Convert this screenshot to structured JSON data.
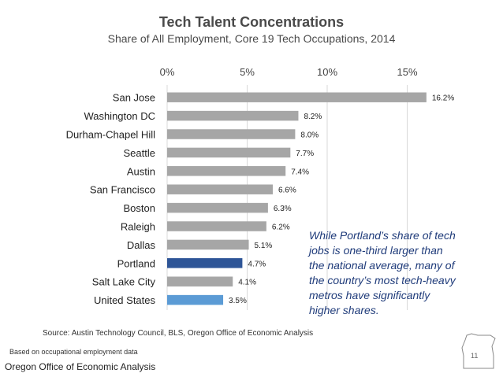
{
  "chart_data": {
    "type": "bar",
    "orientation": "horizontal",
    "title": "Tech Talent Concentrations",
    "subtitle": "Share of All Employment, Core 19 Tech Occupations, 2014",
    "categories": [
      "San Jose",
      "Washington DC",
      "Durham-Chapel Hill",
      "Seattle",
      "Austin",
      "San Francisco",
      "Boston",
      "Raleigh",
      "Dallas",
      "Portland",
      "Salt Lake City",
      "United States"
    ],
    "values": [
      16.2,
      8.2,
      8.0,
      7.7,
      7.4,
      6.6,
      6.3,
      6.2,
      5.1,
      4.7,
      4.1,
      3.5
    ],
    "value_labels": [
      "16.2%",
      "8.2%",
      "8.0%",
      "7.7%",
      "7.4%",
      "6.6%",
      "6.3%",
      "6.2%",
      "5.1%",
      "4.7%",
      "4.1%",
      "3.5%"
    ],
    "xlim": [
      0,
      17
    ],
    "xticks": [
      0,
      5,
      10,
      15
    ],
    "xtick_labels": [
      "0%",
      "5%",
      "10%",
      "15%"
    ],
    "xaxis_position": "top",
    "grid": true,
    "colors": {
      "default": "#a6a6a6",
      "highlight_portland": "#2e5597",
      "highlight_us": "#5b9bd5"
    },
    "bar_colors": [
      "#a6a6a6",
      "#a6a6a6",
      "#a6a6a6",
      "#a6a6a6",
      "#a6a6a6",
      "#a6a6a6",
      "#a6a6a6",
      "#a6a6a6",
      "#a6a6a6",
      "#2e5597",
      "#a6a6a6",
      "#5b9bd5"
    ]
  },
  "annotation": "While Portland’s share of tech jobs is one-third larger than the national average, many of the country’s most tech-heavy metros have significantly higher shares.",
  "source": "Source: Austin Technology Council, BLS, Oregon Office of Economic Analysis",
  "note": "Based on occupational employment data",
  "organization": "Oregon Office of Economic Analysis",
  "page_number": "11"
}
